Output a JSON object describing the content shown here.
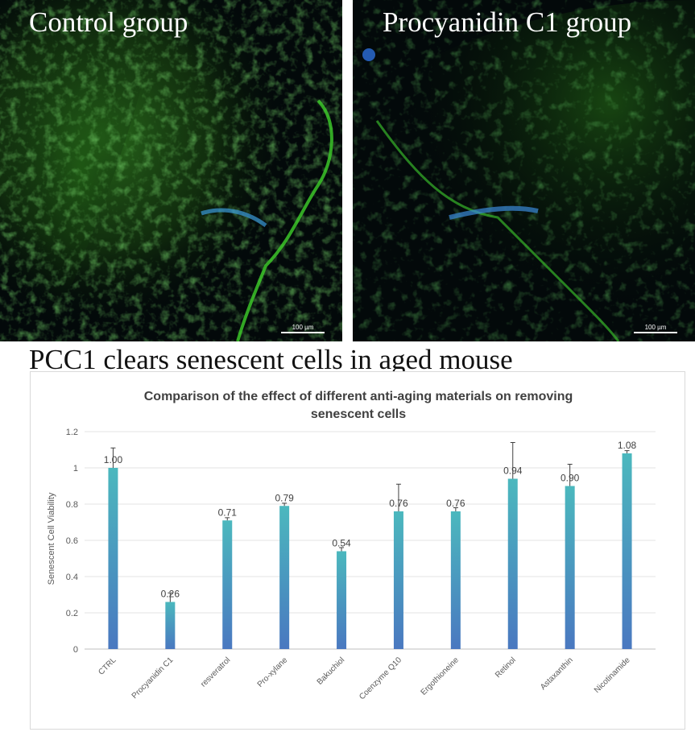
{
  "micrographs": [
    {
      "label": "Control group",
      "scale_label": "100 µm"
    },
    {
      "label": "Procyanidin C1 group",
      "scale_label": "100 µm"
    }
  ],
  "caption": "PCC1 clears senescent cells in aged mouse",
  "chart_data": {
    "type": "bar",
    "title": "Comparison of the effect of different anti-aging materials on removing senescent cells",
    "title_lines": [
      "Comparison of the effect of different anti-aging materials on removing",
      "senescent cells"
    ],
    "xlabel": "",
    "ylabel": "Senescent Cell Viability",
    "ylim": [
      0,
      1.2
    ],
    "yticks": [
      0,
      0.2,
      0.4,
      0.6,
      0.8,
      1,
      1.2
    ],
    "ytick_labels": [
      "0",
      "0.2",
      "0.4",
      "0.6",
      "0.8",
      "1",
      "1.2"
    ],
    "grid": true,
    "categories": [
      "CTRL",
      "Procyanidin C1",
      "resveratrol",
      "Pro-xylane",
      "Bakuchiol",
      "Coenzyme Q10",
      "Ergothioneine",
      "Retinol",
      "Astaxanthin",
      "Nicotinamide"
    ],
    "values": [
      1.0,
      0.26,
      0.71,
      0.79,
      0.54,
      0.76,
      0.76,
      0.94,
      0.9,
      1.08
    ],
    "value_labels": [
      "1.00",
      "0.26",
      "0.71",
      "0.79",
      "0.54",
      "0.76",
      "0.76",
      "0.94",
      "0.90",
      "1.08"
    ],
    "error": [
      0.11,
      0.05,
      0.015,
      0.015,
      0.02,
      0.15,
      0.02,
      0.2,
      0.12,
      0.015
    ],
    "bar_color_top": "#4bb8be",
    "bar_color_bottom": "#4a78c0"
  }
}
